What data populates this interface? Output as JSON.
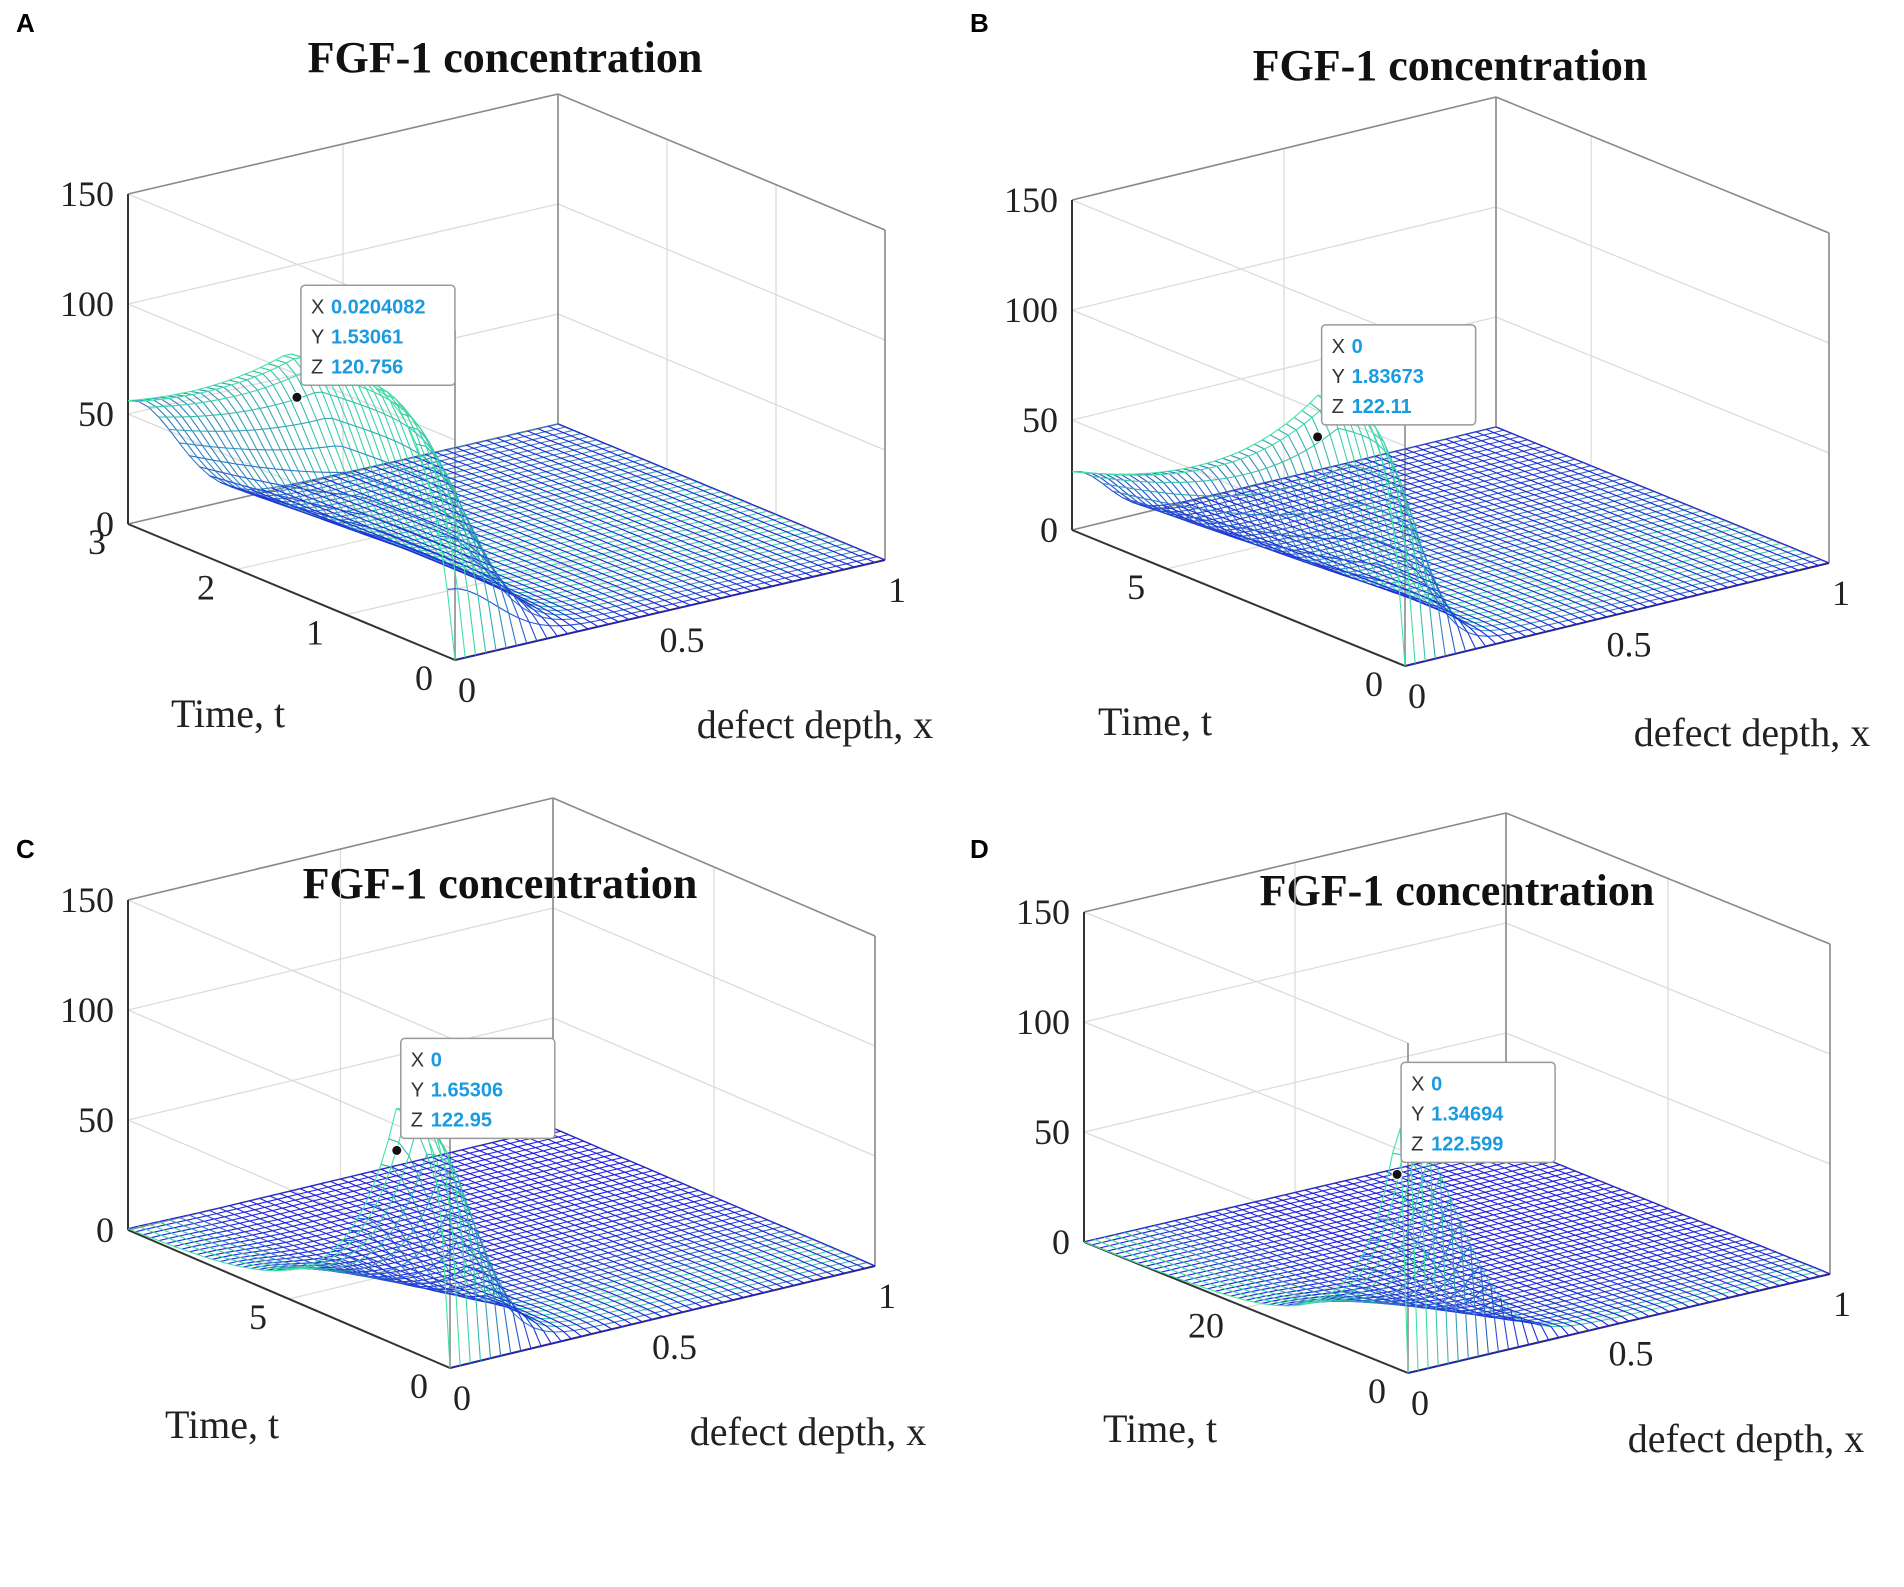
{
  "figure": {
    "colors": {
      "mesh_low": "#1f1fe0",
      "mesh_high": "#3fe6a0",
      "box": "#8a8a8a",
      "grid": "#dcdcdc",
      "tip_value": "#1a9be0",
      "tip_border": "#9a9a9a"
    }
  },
  "chart_data": [
    {
      "panel": "A",
      "type": "surface",
      "title": "FGF-1 concentration",
      "xlabel": "defect depth, x",
      "ylabel": "Time, t",
      "zlabel": "",
      "xlim": [
        0,
        1
      ],
      "ylim": [
        0,
        3
      ],
      "zlim": [
        0,
        150
      ],
      "xticks": [
        "0",
        "0.5",
        "1"
      ],
      "yticks": [
        "0",
        "1",
        "2",
        "3"
      ],
      "zticks": [
        "0",
        "50",
        "100",
        "150"
      ],
      "surface_model": {
        "c0": 120.756,
        "t_peak": 1.53061,
        "width": 0.11,
        "t_rise": 0.25,
        "decay": 0.4,
        "front_tail": 0.0
      },
      "datatip": {
        "x": "0.0204082",
        "y": "1.53061",
        "z": "120.756"
      }
    },
    {
      "panel": "B",
      "type": "surface",
      "title": "FGF-1 concentration",
      "xlabel": "defect depth, x",
      "ylabel": "Time, t",
      "zlabel": "",
      "xlim": [
        0,
        1
      ],
      "ylim": [
        0,
        7
      ],
      "zlim": [
        0,
        150
      ],
      "xticks": [
        "0",
        "0.5",
        "1"
      ],
      "yticks": [
        "0",
        "5"
      ],
      "zticks": [
        "0",
        "50",
        "100",
        "150"
      ],
      "surface_model": {
        "c0": 122.11,
        "t_peak": 1.83673,
        "width": 0.08,
        "t_rise": 0.35,
        "decay": 0.25,
        "front_tail": 0.0
      },
      "datatip": {
        "x": "0",
        "y": "1.83673",
        "z": "122.11"
      }
    },
    {
      "panel": "C",
      "type": "surface",
      "title": "FGF-1 concentration",
      "xlabel": "defect depth, x",
      "ylabel": "Time, t",
      "zlabel": "",
      "xlim": [
        0,
        1
      ],
      "ylim": [
        0,
        10
      ],
      "zlim": [
        0,
        150
      ],
      "xticks": [
        "0",
        "0.5",
        "1"
      ],
      "yticks": [
        "0",
        "5"
      ],
      "zticks": [
        "0",
        "50",
        "100",
        "150"
      ],
      "surface_model": {
        "c0": 122.95,
        "t_peak": 1.65306,
        "width": 0.1,
        "t_rise": 0.35,
        "decay": 0.6,
        "front_tail": 0.0
      },
      "datatip": {
        "x": "0",
        "y": "1.65306",
        "z": "122.95"
      }
    },
    {
      "panel": "D",
      "type": "surface",
      "title": "FGF-1 concentration",
      "xlabel": "defect depth, x",
      "ylabel": "Time, t",
      "zlabel": "",
      "xlim": [
        0,
        1
      ],
      "ylim": [
        0,
        40
      ],
      "zlim": [
        0,
        150
      ],
      "xticks": [
        "0",
        "0.5",
        "1"
      ],
      "yticks": [
        "0",
        "20"
      ],
      "zticks": [
        "0",
        "50",
        "100",
        "150"
      ],
      "surface_model": {
        "c0": 122.599,
        "t_peak": 1.34694,
        "width": 0.13,
        "t_rise": 0.3,
        "decay": 0.18,
        "front_tail": 0.0
      },
      "datatip": {
        "x": "0",
        "y": "1.34694",
        "z": "122.599"
      }
    }
  ]
}
